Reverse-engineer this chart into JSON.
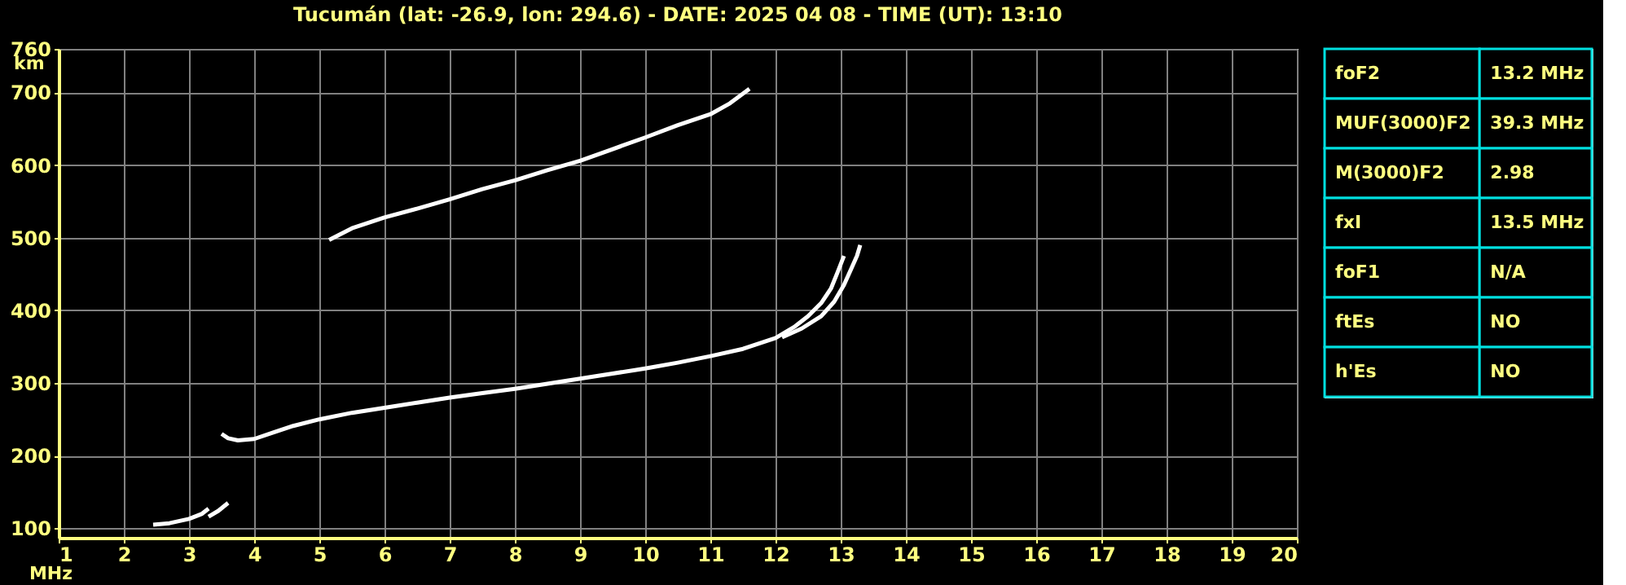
{
  "chart_data": [
    {
      "type": "line",
      "title": "Tucumán (lat: -26.9, lon: 294.6) - DATE: 2025 04 08 - TIME (UT): 13:10",
      "xlabel": "MHz",
      "ylabel": "km",
      "xlim": [
        1,
        20
      ],
      "ylim": [
        87,
        760
      ],
      "xticks": [
        1,
        2,
        3,
        4,
        5,
        6,
        7,
        8,
        9,
        10,
        11,
        12,
        13,
        14,
        15,
        16,
        17,
        18,
        19,
        20
      ],
      "yticks": [
        100,
        200,
        300,
        400,
        500,
        600,
        700,
        760
      ],
      "grid": true,
      "legend": false,
      "marker": "none",
      "line_style": "solid",
      "series": [
        {
          "color": "#ffffff",
          "x": [
            3.5,
            3.6,
            3.75,
            4.0,
            4.3,
            4.6,
            5.0,
            5.5,
            6.0,
            6.5,
            7.0,
            7.5,
            8.0,
            8.5,
            9.0,
            9.5,
            10.0,
            10.5,
            11.0,
            11.5,
            12.0,
            12.3,
            12.5,
            12.7,
            12.85,
            12.95,
            13.05
          ],
          "values": [
            230,
            224,
            221,
            223,
            232,
            241,
            250,
            259,
            266,
            273,
            280,
            286,
            292,
            299,
            306,
            313,
            320,
            328,
            337,
            347,
            362,
            378,
            392,
            410,
            430,
            452,
            475
          ]
        },
        {
          "color": "#ffffff",
          "x": [
            12.1,
            12.4,
            12.7,
            12.9,
            13.05,
            13.15,
            13.25,
            13.3
          ],
          "values": [
            363,
            375,
            392,
            412,
            435,
            455,
            475,
            490
          ]
        },
        {
          "color": "#ffffff",
          "x": [
            5.15,
            5.5,
            6.0,
            6.5,
            7.0,
            7.5,
            8.0,
            8.5,
            9.0,
            9.5,
            10.0,
            10.5,
            11.0,
            11.3,
            11.6
          ],
          "values": [
            497,
            513,
            528,
            540,
            553,
            567,
            579,
            593,
            606,
            622,
            638,
            655,
            670,
            685,
            705
          ]
        },
        {
          "color": "#ffffff",
          "x": [
            2.45,
            2.7,
            3.0,
            3.2,
            3.3
          ],
          "values": [
            105,
            107,
            113,
            120,
            127
          ]
        },
        {
          "color": "#ffffff",
          "x": [
            3.3,
            3.45,
            3.6
          ],
          "values": [
            116,
            124,
            135
          ]
        }
      ]
    },
    {
      "type": "other",
      "annotations": [
        "foF2",
        "13.2 MHz",
        "MUF(3000)F2",
        "39.3 MHz",
        "M(3000)F2",
        "2.98",
        "fxI",
        "13.5 MHz",
        "foF1",
        "N/A",
        "ftEs",
        "NO",
        "h'Es",
        "NO"
      ]
    }
  ]
}
